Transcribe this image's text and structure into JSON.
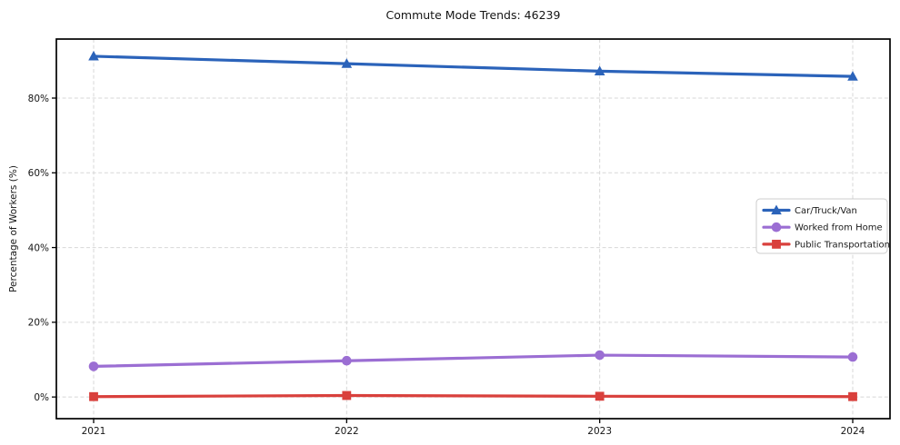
{
  "title": "Commute Mode Trends: 46239",
  "chart_data": {
    "type": "line",
    "title": "Commute Mode Trends: 46239",
    "xlabel": "",
    "ylabel": "Percentage of Workers (%)",
    "x": [
      2021,
      2022,
      2023,
      2024
    ],
    "xtick_labels": [
      "2021",
      "2022",
      "2023",
      "2024"
    ],
    "yticks": [
      0,
      20,
      40,
      60,
      80
    ],
    "ytick_labels": [
      "0%",
      "20%",
      "40%",
      "60%",
      "80%"
    ],
    "ylim": [
      -5.8,
      95.8
    ],
    "grid": true,
    "grid_style": "dashed",
    "grid_color": "#d7d7d7",
    "axes_border_color": "#000000",
    "background_color": "#ffffff",
    "legend_position": "center right",
    "series": [
      {
        "name": "Car/Truck/Van",
        "color": "#2b63ba",
        "marker": "triangle",
        "values": [
          91.2,
          89.2,
          87.2,
          85.8
        ]
      },
      {
        "name": "Worked from Home",
        "color": "#9b6ed3",
        "marker": "circle",
        "values": [
          8.2,
          9.7,
          11.2,
          10.7
        ]
      },
      {
        "name": "Public Transportation",
        "color": "#d9403c",
        "marker": "square",
        "values": [
          0.1,
          0.4,
          0.2,
          0.1
        ]
      }
    ]
  }
}
